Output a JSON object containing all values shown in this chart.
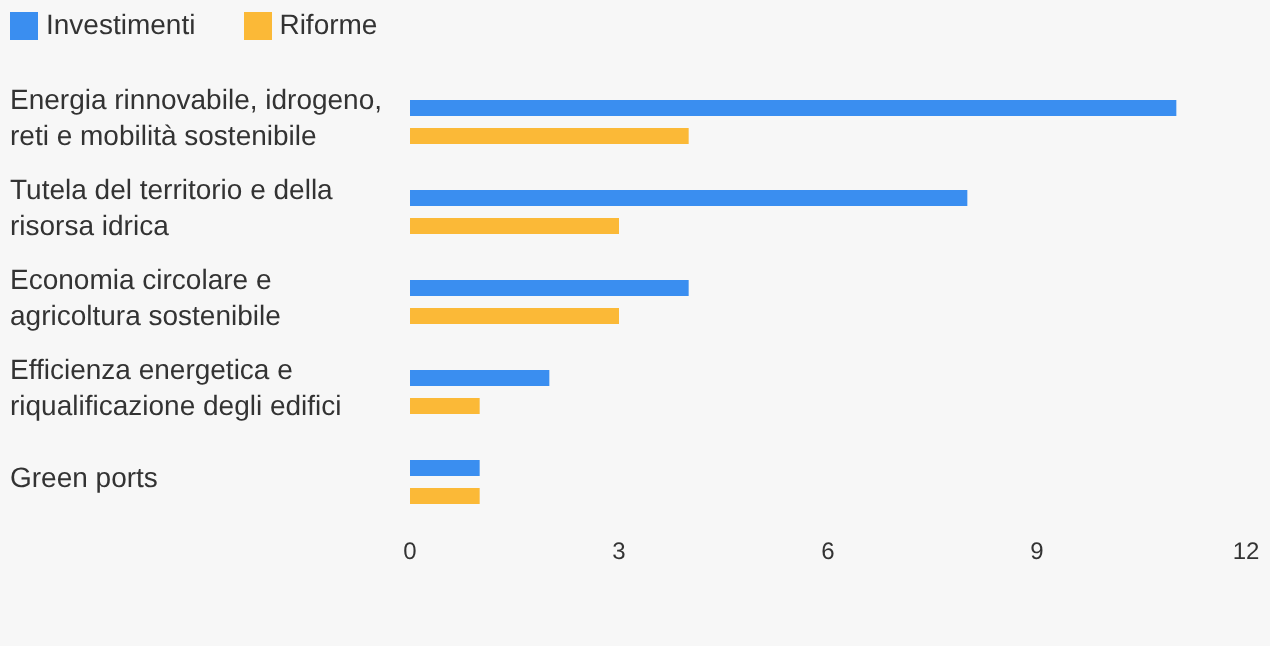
{
  "chart_data": {
    "type": "bar",
    "orientation": "horizontal",
    "categories": [
      "Energia rinnovabile, idrogeno, reti e mobilità sostenibile",
      "Tutela del territorio e della risorsa idrica",
      "Economia circolare e agricoltura sostenibile",
      "Efficienza energetica e riqualificazione degli edifici",
      "Green ports"
    ],
    "series": [
      {
        "name": "Investimenti",
        "color": "#3a8ef0",
        "values": [
          11,
          8,
          4,
          2,
          1
        ]
      },
      {
        "name": "Riforme",
        "color": "#fbb937",
        "values": [
          4,
          3,
          3,
          1,
          1
        ]
      }
    ],
    "xlim": [
      0,
      12
    ],
    "xticks": [
      0,
      3,
      6,
      9,
      12
    ],
    "grid": false,
    "legend": "top left"
  }
}
